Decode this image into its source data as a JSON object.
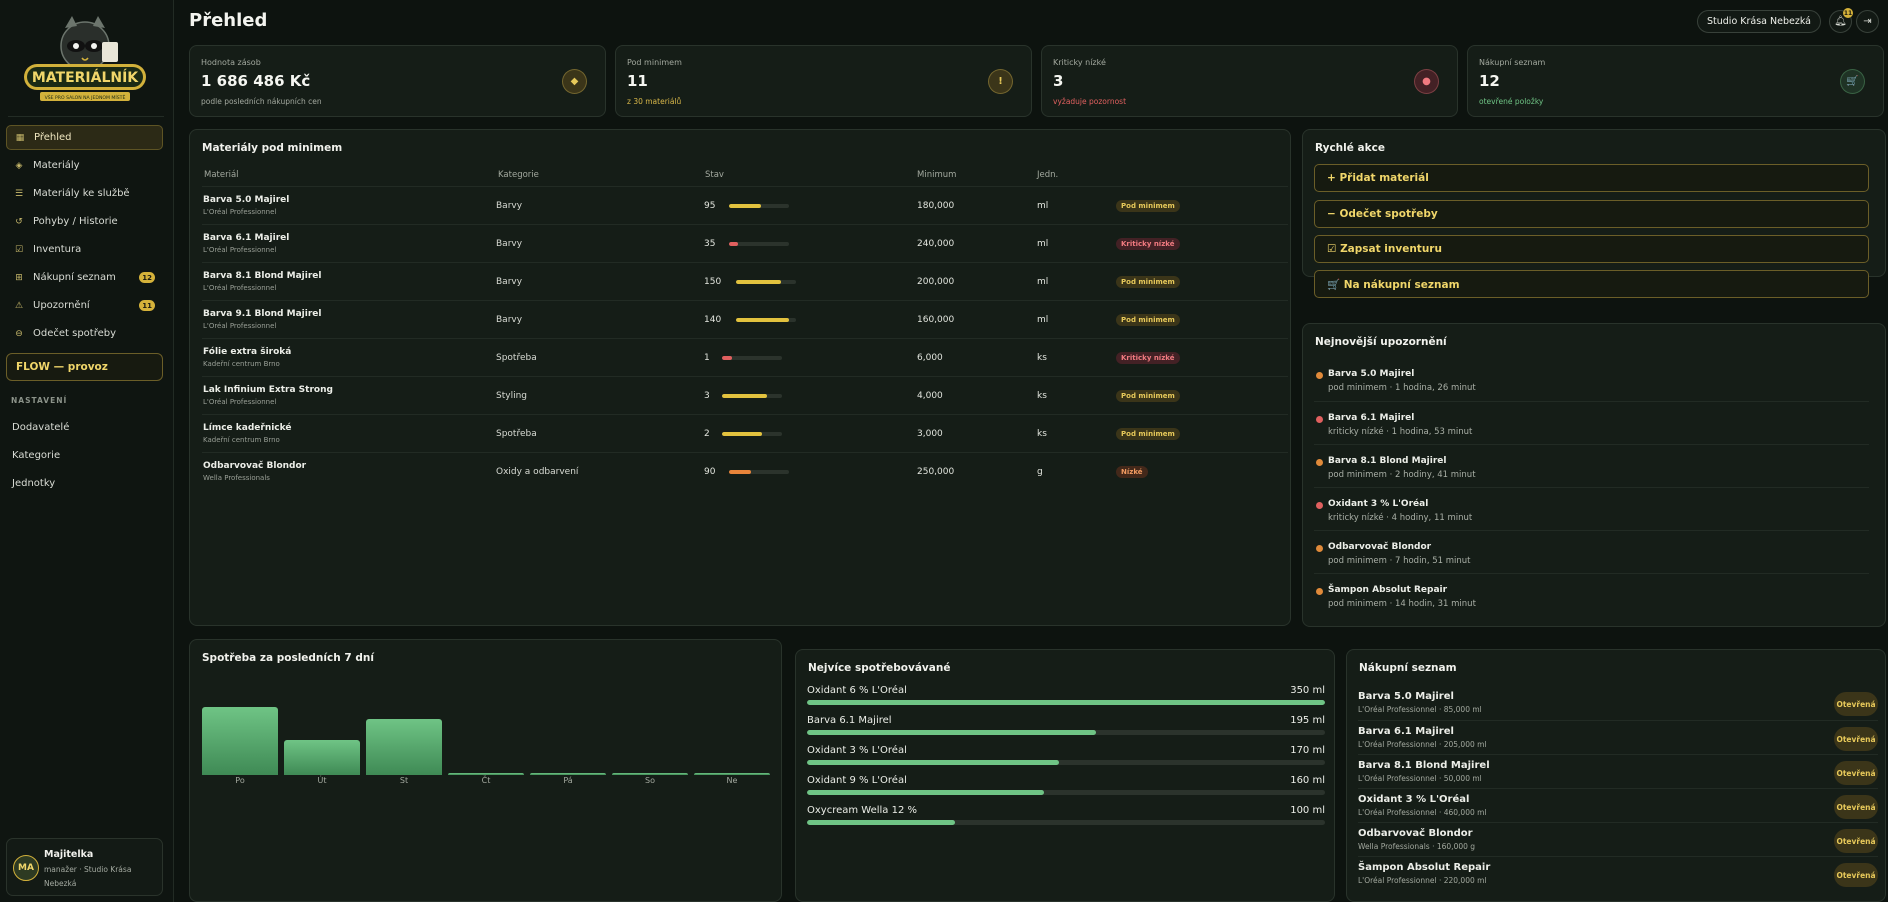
{
  "brand": {
    "logo_text": "MATERIÁLNÍK",
    "logo_tagline": "VŠE PRO SALON NA JEDNOM MÍSTĚ"
  },
  "sidebar": {
    "items": [
      {
        "label": "Přehled",
        "icon": "grid-icon",
        "active": true
      },
      {
        "label": "Materiály",
        "icon": "layers-icon"
      },
      {
        "label": "Materiály ke službě",
        "icon": "list-icon"
      },
      {
        "label": "Pohyby / Historie",
        "icon": "history-icon"
      },
      {
        "label": "Inventura",
        "icon": "clipboard-icon"
      },
      {
        "label": "Nákupní seznam",
        "icon": "cart-icon",
        "badge": "12"
      },
      {
        "label": "Upozornění",
        "icon": "warning-icon",
        "badge": "11"
      },
      {
        "label": "Odečet spotřeby",
        "icon": "minus-circle-icon"
      }
    ],
    "flow_label": "FLOW — provoz",
    "settings_heading": "NASTAVENÍ",
    "settings_items": [
      "Dodavatelé",
      "Kategorie",
      "Jednotky"
    ]
  },
  "user": {
    "initials": "MA",
    "name": "Majitelka",
    "role": "manažer · Studio Krása Nebezká"
  },
  "header": {
    "title": "Přehled",
    "studio": "Studio Krása Nebezká",
    "notifications": "11"
  },
  "stats": [
    {
      "label": "Hodnota zásob",
      "value": "1 686 486 Kč",
      "sub": "podle posledních nákupních cen",
      "icon": "◆",
      "sub_color": "#a3a99f",
      "icon_bg": "#3b3519",
      "icon_color": "#e7c95a"
    },
    {
      "label": "Pod minimem",
      "value": "11",
      "sub": "z 30 materiálů",
      "icon": "!",
      "sub_color": "#d9b84a",
      "icon_bg": "#3b3519",
      "icon_color": "#e7c95a"
    },
    {
      "label": "Kriticky nízké",
      "value": "3",
      "sub": "vyžaduje pozornost",
      "icon": "●",
      "sub_color": "#e0605f",
      "icon_bg": "#432125",
      "icon_color": "#f07a80"
    },
    {
      "label": "Nákupní seznam",
      "value": "12",
      "sub": "otevřené položky",
      "icon": "🛒",
      "sub_color": "#6fc485",
      "icon_bg": "#1f3325",
      "icon_color": "#6fc485"
    }
  ],
  "low_table": {
    "title": "Materiály pod minimem",
    "columns": [
      "Materiál",
      "Kategorie",
      "Stav",
      "Minimum",
      "Jedn."
    ],
    "rows": [
      {
        "name": "Barva 5.0 Majirel",
        "brand": "L'Oréal Professionnel",
        "category": "Barvy",
        "qty": "95",
        "level": 0.53,
        "min": "180,000",
        "unit": "ml",
        "status": "Pod minimem",
        "kind": "pod"
      },
      {
        "name": "Barva 6.1 Majirel",
        "brand": "L'Oréal Professionnel",
        "category": "Barvy",
        "qty": "35",
        "level": 0.15,
        "min": "240,000",
        "unit": "ml",
        "status": "Kriticky nízké",
        "kind": "krit"
      },
      {
        "name": "Barva 8.1 Blond Majirel",
        "brand": "L'Oréal Professionnel",
        "category": "Barvy",
        "qty": "150",
        "level": 0.75,
        "min": "200,000",
        "unit": "ml",
        "status": "Pod minimem",
        "kind": "pod"
      },
      {
        "name": "Barva 9.1 Blond Majirel",
        "brand": "L'Oréal Professionnel",
        "category": "Barvy",
        "qty": "140",
        "level": 0.88,
        "min": "160,000",
        "unit": "ml",
        "status": "Pod minimem",
        "kind": "pod"
      },
      {
        "name": "Fólie extra široká",
        "brand": "Kadeřní centrum Brno",
        "category": "Spotřeba",
        "qty": "1",
        "level": 0.17,
        "min": "6,000",
        "unit": "ks",
        "status": "Kriticky nízké",
        "kind": "krit"
      },
      {
        "name": "Lak Infinium Extra Strong",
        "brand": "L'Oréal Professionnel",
        "category": "Styling",
        "qty": "3",
        "level": 0.75,
        "min": "4,000",
        "unit": "ks",
        "status": "Pod minimem",
        "kind": "pod"
      },
      {
        "name": "Límce kadeřnické",
        "brand": "Kadeřní centrum Brno",
        "category": "Spotřeba",
        "qty": "2",
        "level": 0.67,
        "min": "3,000",
        "unit": "ks",
        "status": "Pod minimem",
        "kind": "pod"
      },
      {
        "name": "Odbarvovač Blondor",
        "brand": "Wella Professionals",
        "category": "Oxidy a odbarvení",
        "qty": "90",
        "level": 0.36,
        "min": "250,000",
        "unit": "g",
        "status": "Nízké",
        "kind": "niz"
      }
    ]
  },
  "quick_actions": {
    "title": "Rychlé akce",
    "items": [
      "+ Přidat materiál",
      "− Odečet spotřeby",
      "☑ Zapsat inventuru",
      "🛒 Na nákupní seznam"
    ]
  },
  "alerts": {
    "title": "Nejnovější upozornění",
    "items": [
      {
        "name": "Barva 5.0 Majirel",
        "sub": "pod minimem · 1 hodina, 26 minut",
        "color": "#e08a3a"
      },
      {
        "name": "Barva 6.1 Majirel",
        "sub": "kriticky nízké · 1 hodina, 53 minut",
        "color": "#e0605f"
      },
      {
        "name": "Barva 8.1 Blond Majirel",
        "sub": "pod minimem · 2 hodiny, 41 minut",
        "color": "#e08a3a"
      },
      {
        "name": "Oxidant 3 % L'Oréal",
        "sub": "kriticky nízké · 4 hodiny, 11 minut",
        "color": "#e0605f"
      },
      {
        "name": "Odbarvovač Blondor",
        "sub": "pod minimem · 7 hodin, 51 minut",
        "color": "#e08a3a"
      },
      {
        "name": "Šampon Absolut Repair",
        "sub": "pod minimem · 14 hodin, 31 minut",
        "color": "#e08a3a"
      }
    ]
  },
  "chart_data": {
    "type": "bar",
    "title": "Spotřeba za posledních 7 dní",
    "categories": [
      "Po",
      "Út",
      "St",
      "Čt",
      "Pá",
      "So",
      "Ne"
    ],
    "values": [
      100,
      52,
      82,
      3,
      3,
      3,
      3
    ],
    "grid": false
  },
  "most_used": {
    "title": "Nejvíce spotřebovávané",
    "items": [
      {
        "name": "Oxidant 6 % L'Oréal",
        "value": "350 ml",
        "share": 1.0
      },
      {
        "name": "Barva 6.1 Majirel",
        "value": "195 ml",
        "share": 0.557
      },
      {
        "name": "Oxidant 3 % L'Oréal",
        "value": "170 ml",
        "share": 0.486
      },
      {
        "name": "Oxidant 9 % L'Oréal",
        "value": "160 ml",
        "share": 0.457
      },
      {
        "name": "Oxycream Wella 12 %",
        "value": "100 ml",
        "share": 0.286
      }
    ]
  },
  "shopping": {
    "title": "Nákupní seznam",
    "items": [
      {
        "name": "Barva 5.0 Majirel",
        "sub": "L'Oréal Professionnel · 85,000 ml",
        "status": "Otevřená"
      },
      {
        "name": "Barva 6.1 Majirel",
        "sub": "L'Oréal Professionnel · 205,000 ml",
        "status": "Otevřená"
      },
      {
        "name": "Barva 8.1 Blond Majirel",
        "sub": "L'Oréal Professionnel · 50,000 ml",
        "status": "Otevřená"
      },
      {
        "name": "Oxidant 3 % L'Oréal",
        "sub": "L'Oréal Professionnel · 460,000 ml",
        "status": "Otevřená"
      },
      {
        "name": "Odbarvovač Blondor",
        "sub": "Wella Professionals · 160,000 g",
        "status": "Otevřená"
      },
      {
        "name": "Šampon Absolut Repair",
        "sub": "L'Oréal Professionnel · 220,000 ml",
        "status": "Otevřená"
      }
    ]
  }
}
